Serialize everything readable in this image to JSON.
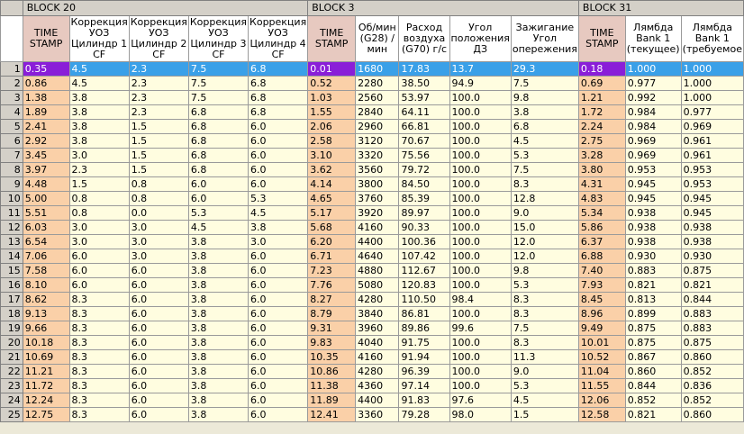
{
  "blocks": [
    {
      "label": "BLOCK 20",
      "span": 5
    },
    {
      "label": "BLOCK 3",
      "span": 5
    },
    {
      "label": "BLOCK 31",
      "span": 3
    }
  ],
  "columns": [
    {
      "label": "TIME STAMP",
      "ts": true
    },
    {
      "label": "Коррекция УОЗ Цилиндр 1 CF"
    },
    {
      "label": "Коррекция УОЗ Цилиндр 2 CF"
    },
    {
      "label": "Коррекция УОЗ Цилиндр 3 CF"
    },
    {
      "label": "Коррекция УОЗ Цилиндр 4 CF"
    },
    {
      "label": "TIME STAMP",
      "ts": true
    },
    {
      "label": "Об/мин (G28) /мин"
    },
    {
      "label": "Расход воздуха (G70) г/с"
    },
    {
      "label": "Угол положения ДЗ"
    },
    {
      "label": "Зажигание Угол опережения"
    },
    {
      "label": "TIME STAMP",
      "ts": true
    },
    {
      "label": "Лямбда Bank 1 (текущее)"
    },
    {
      "label": "Лямбда Bank 1 (требуемое"
    }
  ],
  "selected_row": 0,
  "rows": [
    [
      "1",
      "0.35",
      "4.5",
      "2.3",
      "7.5",
      "6.8",
      "0.01",
      "1680",
      "17.83",
      "13.7",
      "29.3",
      "0.18",
      "1.000",
      "1.000"
    ],
    [
      "2",
      "0.86",
      "4.5",
      "2.3",
      "7.5",
      "6.8",
      "0.52",
      "2280",
      "38.50",
      "94.9",
      "7.5",
      "0.69",
      "0.977",
      "1.000"
    ],
    [
      "3",
      "1.38",
      "3.8",
      "2.3",
      "7.5",
      "6.8",
      "1.03",
      "2560",
      "53.97",
      "100.0",
      "9.8",
      "1.21",
      "0.992",
      "1.000"
    ],
    [
      "4",
      "1.89",
      "3.8",
      "2.3",
      "6.8",
      "6.8",
      "1.55",
      "2840",
      "64.11",
      "100.0",
      "3.8",
      "1.72",
      "0.984",
      "0.977"
    ],
    [
      "5",
      "2.41",
      "3.8",
      "1.5",
      "6.8",
      "6.0",
      "2.06",
      "2960",
      "66.81",
      "100.0",
      "6.8",
      "2.24",
      "0.984",
      "0.969"
    ],
    [
      "6",
      "2.92",
      "3.8",
      "1.5",
      "6.8",
      "6.0",
      "2.58",
      "3120",
      "70.67",
      "100.0",
      "4.5",
      "2.75",
      "0.969",
      "0.961"
    ],
    [
      "7",
      "3.45",
      "3.0",
      "1.5",
      "6.8",
      "6.0",
      "3.10",
      "3320",
      "75.56",
      "100.0",
      "5.3",
      "3.28",
      "0.969",
      "0.961"
    ],
    [
      "8",
      "3.97",
      "2.3",
      "1.5",
      "6.8",
      "6.0",
      "3.62",
      "3560",
      "79.72",
      "100.0",
      "7.5",
      "3.80",
      "0.953",
      "0.953"
    ],
    [
      "9",
      "4.48",
      "1.5",
      "0.8",
      "6.0",
      "6.0",
      "4.14",
      "3800",
      "84.50",
      "100.0",
      "8.3",
      "4.31",
      "0.945",
      "0.953"
    ],
    [
      "10",
      "5.00",
      "0.8",
      "0.8",
      "6.0",
      "5.3",
      "4.65",
      "3760",
      "85.39",
      "100.0",
      "12.8",
      "4.83",
      "0.945",
      "0.945"
    ],
    [
      "11",
      "5.51",
      "0.8",
      "0.0",
      "5.3",
      "4.5",
      "5.17",
      "3920",
      "89.97",
      "100.0",
      "9.0",
      "5.34",
      "0.938",
      "0.945"
    ],
    [
      "12",
      "6.03",
      "3.0",
      "3.0",
      "4.5",
      "3.8",
      "5.68",
      "4160",
      "90.33",
      "100.0",
      "15.0",
      "5.86",
      "0.938",
      "0.938"
    ],
    [
      "13",
      "6.54",
      "3.0",
      "3.0",
      "3.8",
      "3.0",
      "6.20",
      "4400",
      "100.36",
      "100.0",
      "12.0",
      "6.37",
      "0.938",
      "0.938"
    ],
    [
      "14",
      "7.06",
      "6.0",
      "3.0",
      "3.8",
      "6.0",
      "6.71",
      "4640",
      "107.42",
      "100.0",
      "12.0",
      "6.88",
      "0.930",
      "0.930"
    ],
    [
      "15",
      "7.58",
      "6.0",
      "6.0",
      "3.8",
      "6.0",
      "7.23",
      "4880",
      "112.67",
      "100.0",
      "9.8",
      "7.40",
      "0.883",
      "0.875"
    ],
    [
      "16",
      "8.10",
      "6.0",
      "6.0",
      "3.8",
      "6.0",
      "7.76",
      "5080",
      "120.83",
      "100.0",
      "5.3",
      "7.93",
      "0.821",
      "0.821"
    ],
    [
      "17",
      "8.62",
      "8.3",
      "6.0",
      "3.8",
      "6.0",
      "8.27",
      "4280",
      "110.50",
      "98.4",
      "8.3",
      "8.45",
      "0.813",
      "0.844"
    ],
    [
      "18",
      "9.13",
      "8.3",
      "6.0",
      "3.8",
      "6.0",
      "8.79",
      "3840",
      "86.81",
      "100.0",
      "8.3",
      "8.96",
      "0.899",
      "0.883"
    ],
    [
      "19",
      "9.66",
      "8.3",
      "6.0",
      "3.8",
      "6.0",
      "9.31",
      "3960",
      "89.86",
      "99.6",
      "7.5",
      "9.49",
      "0.875",
      "0.883"
    ],
    [
      "20",
      "10.18",
      "8.3",
      "6.0",
      "3.8",
      "6.0",
      "9.83",
      "4040",
      "91.75",
      "100.0",
      "8.3",
      "10.01",
      "0.875",
      "0.875"
    ],
    [
      "21",
      "10.69",
      "8.3",
      "6.0",
      "3.8",
      "6.0",
      "10.35",
      "4160",
      "91.94",
      "100.0",
      "11.3",
      "10.52",
      "0.867",
      "0.860"
    ],
    [
      "22",
      "11.21",
      "8.3",
      "6.0",
      "3.8",
      "6.0",
      "10.86",
      "4280",
      "96.39",
      "100.0",
      "9.0",
      "11.04",
      "0.860",
      "0.852"
    ],
    [
      "23",
      "11.72",
      "8.3",
      "6.0",
      "3.8",
      "6.0",
      "11.38",
      "4360",
      "97.14",
      "100.0",
      "5.3",
      "11.55",
      "0.844",
      "0.836"
    ],
    [
      "24",
      "12.24",
      "8.3",
      "6.0",
      "3.8",
      "6.0",
      "11.89",
      "4400",
      "91.83",
      "97.6",
      "4.5",
      "12.06",
      "0.852",
      "0.852"
    ],
    [
      "25",
      "12.75",
      "8.3",
      "6.0",
      "3.8",
      "6.0",
      "12.41",
      "3360",
      "79.28",
      "98.0",
      "1.5",
      "12.58",
      "0.821",
      "0.860"
    ]
  ]
}
